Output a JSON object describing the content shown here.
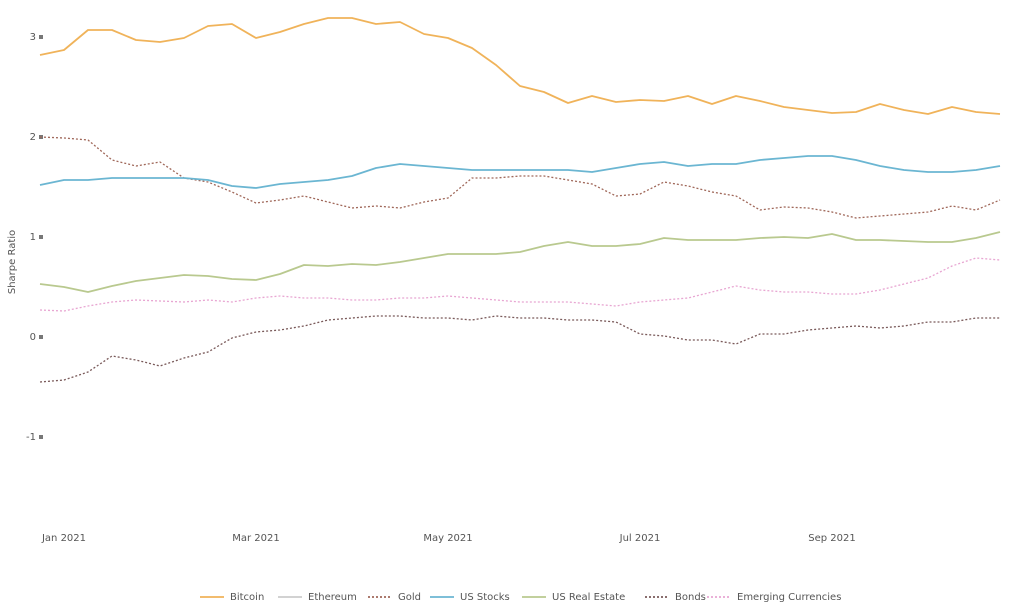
{
  "chart_data": {
    "type": "line",
    "y_label": "Sharpe Ratio",
    "categories": [
      null,
      "Jan 2021",
      null,
      null,
      null,
      null,
      null,
      null,
      null,
      "Mar 2021",
      null,
      null,
      null,
      null,
      null,
      null,
      null,
      "May 2021",
      null,
      null,
      null,
      null,
      null,
      null,
      null,
      "Jul 2021",
      null,
      null,
      null,
      null,
      null,
      null,
      null,
      "Sep 2021",
      null,
      null,
      null,
      null,
      null,
      null,
      null
    ],
    "ylim": [
      -1.9,
      3.3
    ],
    "yticks": [
      3,
      2,
      1,
      0,
      -1
    ],
    "legend": "bottom",
    "series": [
      {
        "name": "Bitcoin",
        "color": "#f0b35a",
        "style": "solid",
        "visible": true,
        "values": [
          2.82,
          2.87,
          3.07,
          3.07,
          2.97,
          2.95,
          2.99,
          3.11,
          3.13,
          2.99,
          3.05,
          3.13,
          3.19,
          3.19,
          3.13,
          3.15,
          3.03,
          2.99,
          2.89,
          2.72,
          2.51,
          2.45,
          2.34,
          2.41,
          2.35,
          2.37,
          2.36,
          2.41,
          2.33,
          2.41,
          2.36,
          2.3,
          2.27,
          2.24,
          2.25,
          2.33,
          2.27,
          2.23,
          2.3,
          2.25,
          2.23
        ]
      },
      {
        "name": "Ethereum",
        "color": "#c8c8c8",
        "style": "solid",
        "visible": false,
        "values": [
          null,
          null,
          null,
          null,
          null,
          null,
          null,
          null,
          null,
          null,
          null,
          null,
          null,
          null,
          null,
          null,
          null,
          null,
          null,
          null,
          null,
          null,
          null,
          null,
          null,
          null,
          null,
          null,
          null,
          null,
          null,
          null,
          null,
          null,
          null,
          null,
          null,
          null,
          null,
          null,
          null
        ]
      },
      {
        "name": "Gold",
        "color": "#a0685a",
        "style": "dotted",
        "visible": true,
        "values": [
          2.0,
          1.99,
          1.97,
          1.77,
          1.71,
          1.75,
          1.59,
          1.55,
          1.45,
          1.34,
          1.37,
          1.41,
          1.35,
          1.29,
          1.31,
          1.29,
          1.35,
          1.39,
          1.59,
          1.59,
          1.61,
          1.61,
          1.57,
          1.53,
          1.41,
          1.43,
          1.55,
          1.51,
          1.45,
          1.41,
          1.27,
          1.3,
          1.29,
          1.25,
          1.19,
          1.21,
          1.23,
          1.25,
          1.31,
          1.27,
          1.37
        ]
      },
      {
        "name": "US Stocks",
        "color": "#6bb6d2",
        "style": "solid",
        "visible": true,
        "values": [
          1.52,
          1.57,
          1.57,
          1.59,
          1.59,
          1.59,
          1.59,
          1.57,
          1.51,
          1.49,
          1.53,
          1.55,
          1.57,
          1.61,
          1.69,
          1.73,
          1.71,
          1.69,
          1.67,
          1.67,
          1.67,
          1.67,
          1.67,
          1.65,
          1.69,
          1.73,
          1.75,
          1.71,
          1.73,
          1.73,
          1.77,
          1.79,
          1.81,
          1.81,
          1.77,
          1.71,
          1.67,
          1.65,
          1.65,
          1.67,
          1.71
        ]
      },
      {
        "name": "US Real Estate",
        "color": "#b9c98f",
        "style": "solid",
        "visible": true,
        "values": [
          0.53,
          0.5,
          0.45,
          0.51,
          0.56,
          0.59,
          0.62,
          0.61,
          0.58,
          0.57,
          0.63,
          0.72,
          0.71,
          0.73,
          0.72,
          0.75,
          0.79,
          0.83,
          0.83,
          0.83,
          0.85,
          0.91,
          0.95,
          0.91,
          0.91,
          0.93,
          0.99,
          0.97,
          0.97,
          0.97,
          0.99,
          1.0,
          0.99,
          1.03,
          0.97,
          0.97,
          0.96,
          0.95,
          0.95,
          0.99,
          1.05
        ]
      },
      {
        "name": "Bonds",
        "color": "#7a5a5a",
        "style": "dotted",
        "visible": true,
        "values": [
          -0.45,
          -0.43,
          -0.35,
          -0.19,
          -0.23,
          -0.29,
          -0.21,
          -0.15,
          -0.01,
          0.05,
          0.07,
          0.11,
          0.17,
          0.19,
          0.21,
          0.21,
          0.19,
          0.19,
          0.17,
          0.21,
          0.19,
          0.19,
          0.17,
          0.17,
          0.15,
          0.03,
          0.01,
          -0.03,
          -0.03,
          -0.07,
          0.03,
          0.03,
          0.07,
          0.09,
          0.11,
          0.09,
          0.11,
          0.15,
          0.15,
          0.19,
          0.19
        ]
      },
      {
        "name": "Emerging Currencies",
        "color": "#e8a6d2",
        "style": "dotted",
        "visible": true,
        "values": [
          0.27,
          0.26,
          0.31,
          0.35,
          0.37,
          0.36,
          0.35,
          0.37,
          0.35,
          0.39,
          0.41,
          0.39,
          0.39,
          0.37,
          0.37,
          0.39,
          0.39,
          0.41,
          0.39,
          0.37,
          0.35,
          0.35,
          0.35,
          0.33,
          0.31,
          0.35,
          0.37,
          0.39,
          0.45,
          0.51,
          0.47,
          0.45,
          0.45,
          0.43,
          0.43,
          0.47,
          0.53,
          0.59,
          0.71,
          0.79,
          0.77
        ]
      }
    ]
  }
}
